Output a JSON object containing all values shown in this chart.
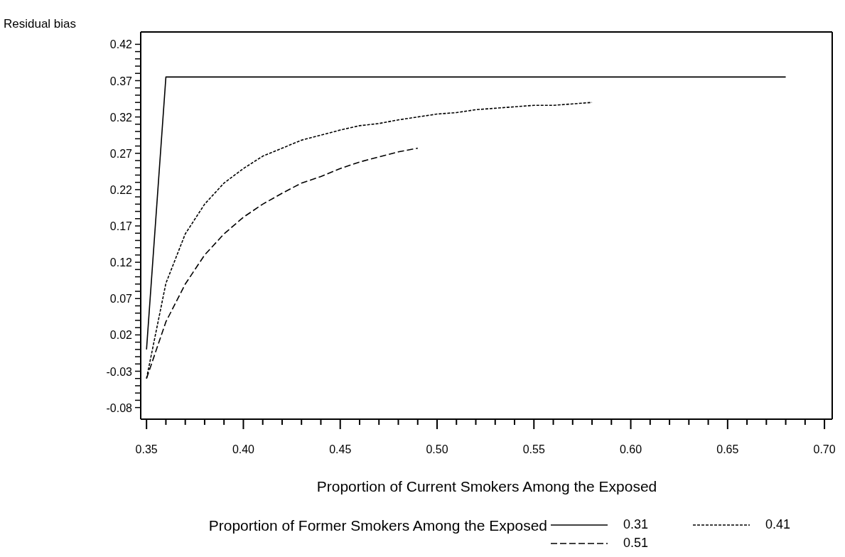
{
  "chart_data": {
    "type": "line",
    "xlabel": "Proportion of Current Smokers Among the Exposed",
    "ylabel": "Residual bias",
    "legend_title": "Proportion of Former Smokers Among the Exposed",
    "legend": "bottom",
    "marker": "none",
    "xlim": [
      0.347,
      0.704
    ],
    "ylim": [
      -0.096,
      0.437
    ],
    "xticks": [
      0.35,
      {
        "value": 0.36,
        "label": null
      },
      {
        "value": 0.37,
        "label": null
      },
      {
        "value": 0.38,
        "label": null
      },
      {
        "value": 0.39,
        "label": null
      },
      {
        "value": 0.4,
        "label": "0.40"
      },
      {
        "value": 0.41,
        "label": null
      },
      {
        "value": 0.42,
        "label": null
      },
      {
        "value": 0.43,
        "label": null
      },
      {
        "value": 0.44,
        "label": null
      },
      0.45,
      {
        "value": 0.46,
        "label": null
      },
      {
        "value": 0.47,
        "label": null
      },
      {
        "value": 0.48,
        "label": null
      },
      {
        "value": 0.49,
        "label": null
      },
      {
        "value": 0.5,
        "label": "0.50"
      },
      {
        "value": 0.51,
        "label": null
      },
      {
        "value": 0.52,
        "label": null
      },
      {
        "value": 0.53,
        "label": null
      },
      {
        "value": 0.54,
        "label": null
      },
      0.55,
      {
        "value": 0.56,
        "label": null
      },
      {
        "value": 0.57,
        "label": null
      },
      {
        "value": 0.58,
        "label": null
      },
      {
        "value": 0.59,
        "label": null
      },
      {
        "value": 0.6,
        "label": "0.60"
      },
      {
        "value": 0.61,
        "label": null
      },
      {
        "value": 0.62,
        "label": null
      },
      {
        "value": 0.63,
        "label": null
      },
      {
        "value": 0.64,
        "label": null
      },
      0.65,
      {
        "value": 0.66,
        "label": null
      },
      {
        "value": 0.67,
        "label": null
      },
      {
        "value": 0.68,
        "label": null
      },
      {
        "value": 0.69,
        "label": null
      },
      {
        "value": 0.7,
        "label": "0.70"
      }
    ],
    "yticks": [
      -0.08,
      {
        "value": -0.07,
        "label": null
      },
      {
        "value": -0.06,
        "label": null
      },
      {
        "value": -0.05,
        "label": null
      },
      {
        "value": -0.04,
        "label": null
      },
      -0.03,
      {
        "value": -0.02,
        "label": null
      },
      {
        "value": -0.01,
        "label": null
      },
      {
        "value": 0,
        "label": null
      },
      {
        "value": 0.01,
        "label": null
      },
      0.02,
      {
        "value": 0.03,
        "label": null
      },
      {
        "value": 0.04,
        "label": null
      },
      {
        "value": 0.05,
        "label": null
      },
      {
        "value": 0.06,
        "label": null
      },
      0.07,
      {
        "value": 0.08,
        "label": null
      },
      {
        "value": 0.09,
        "label": null
      },
      {
        "value": 0.1,
        "label": null
      },
      {
        "value": 0.11,
        "label": null
      },
      0.12,
      {
        "value": 0.13,
        "label": null
      },
      {
        "value": 0.14,
        "label": null
      },
      {
        "value": 0.15,
        "label": null
      },
      {
        "value": 0.16,
        "label": null
      },
      0.17,
      {
        "value": 0.18,
        "label": null
      },
      {
        "value": 0.19,
        "label": null
      },
      {
        "value": 0.2,
        "label": null
      },
      {
        "value": 0.21,
        "label": null
      },
      0.22,
      {
        "value": 0.23,
        "label": null
      },
      {
        "value": 0.24,
        "label": null
      },
      {
        "value": 0.25,
        "label": null
      },
      {
        "value": 0.26,
        "label": null
      },
      0.27,
      {
        "value": 0.28,
        "label": null
      },
      {
        "value": 0.29,
        "label": null
      },
      {
        "value": 0.3,
        "label": null
      },
      {
        "value": 0.31,
        "label": null
      },
      0.32,
      {
        "value": 0.33,
        "label": null
      },
      {
        "value": 0.34,
        "label": null
      },
      {
        "value": 0.35,
        "label": null
      },
      {
        "value": 0.36,
        "label": null
      },
      0.37,
      {
        "value": 0.38,
        "label": null
      },
      {
        "value": 0.39,
        "label": null
      },
      {
        "value": 0.4,
        "label": null
      },
      {
        "value": 0.41,
        "label": null
      },
      0.42
    ],
    "series": [
      {
        "name": "0.31",
        "color": "#000000",
        "line_style": "solid",
        "x": [
          0.35,
          0.36,
          0.68
        ],
        "values": [
          0.0,
          0.375,
          0.375
        ]
      },
      {
        "name": "0.41",
        "color": "#000000",
        "line_style": "dotted",
        "x": [
          0.35,
          0.36,
          0.37,
          0.38,
          0.39,
          0.4,
          0.41,
          0.42,
          0.43,
          0.44,
          0.45,
          0.46,
          0.47,
          0.48,
          0.49,
          0.5,
          0.51,
          0.52,
          0.53,
          0.54,
          0.55,
          0.56,
          0.57,
          0.58
        ],
        "values": [
          -0.04,
          0.091,
          0.159,
          0.2,
          0.229,
          0.249,
          0.266,
          0.277,
          0.288,
          0.295,
          0.302,
          0.308,
          0.311,
          0.316,
          0.32,
          0.324,
          0.326,
          0.33,
          0.332,
          0.334,
          0.336,
          0.336,
          0.338,
          0.34
        ]
      },
      {
        "name": "0.51",
        "color": "#000000",
        "line_style": "dashed",
        "x": [
          0.35,
          0.36,
          0.37,
          0.38,
          0.39,
          0.4,
          0.41,
          0.42,
          0.43,
          0.44,
          0.45,
          0.46,
          0.47,
          0.48,
          0.49
        ],
        "values": [
          -0.04,
          0.038,
          0.09,
          0.13,
          0.159,
          0.182,
          0.2,
          0.215,
          0.229,
          0.238,
          0.249,
          0.258,
          0.265,
          0.272,
          0.277
        ]
      }
    ]
  }
}
